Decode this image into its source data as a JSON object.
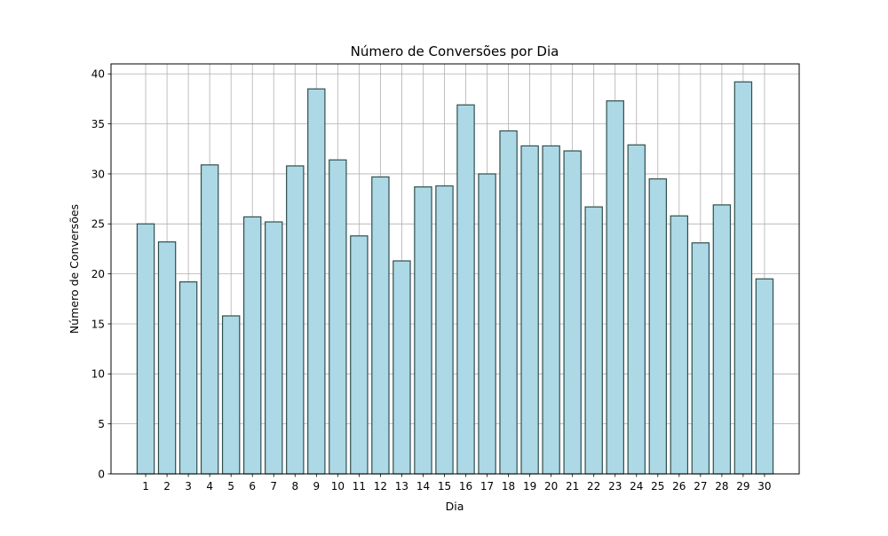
{
  "chart_data": {
    "type": "bar",
    "title": "Número de Conversões por Dia",
    "xlabel": "Dia",
    "ylabel": "Número de Conversões",
    "categories": [
      "1",
      "2",
      "3",
      "4",
      "5",
      "6",
      "7",
      "8",
      "9",
      "10",
      "11",
      "12",
      "13",
      "14",
      "15",
      "16",
      "17",
      "18",
      "19",
      "20",
      "21",
      "22",
      "23",
      "24",
      "25",
      "26",
      "27",
      "28",
      "29",
      "30"
    ],
    "values": [
      25.0,
      23.2,
      19.2,
      30.9,
      15.8,
      25.7,
      25.2,
      30.8,
      38.5,
      31.4,
      23.8,
      29.7,
      21.3,
      28.7,
      28.8,
      36.9,
      30.0,
      34.3,
      32.8,
      32.8,
      32.3,
      26.7,
      37.3,
      32.9,
      29.5,
      25.8,
      23.1,
      26.9,
      39.2,
      19.5
    ],
    "ylim": [
      0,
      41
    ],
    "yticks": [
      0,
      5,
      10,
      15,
      20,
      25,
      30,
      35,
      40
    ],
    "grid": true,
    "bar_color": "#add8e6",
    "edge_color": "#2f4f4f"
  }
}
